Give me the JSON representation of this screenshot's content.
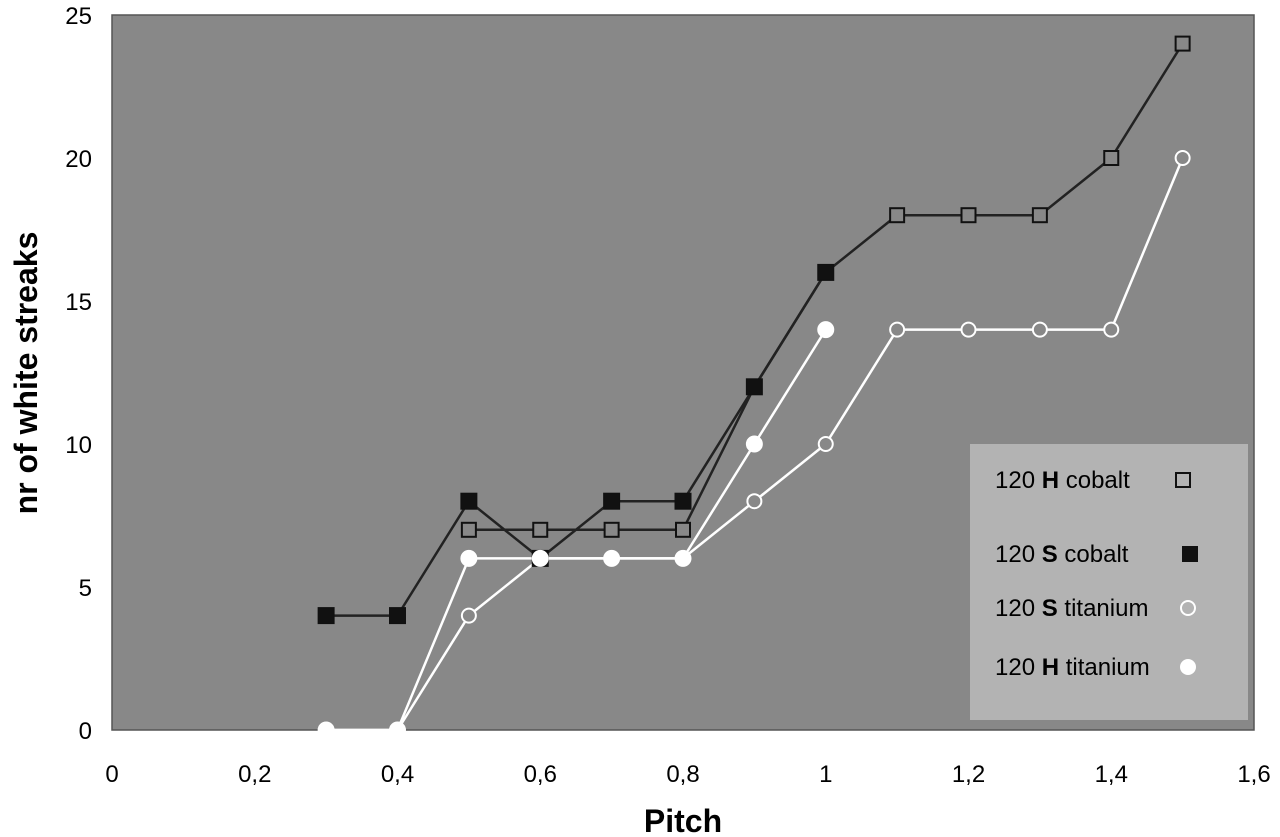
{
  "chart_data": {
    "type": "line",
    "title": "",
    "xlabel": "Pitch",
    "ylabel": "nr of white streaks",
    "xlim": [
      0,
      1.6
    ],
    "ylim": [
      0,
      25
    ],
    "x_ticks": [
      "0",
      "0,2",
      "0,4",
      "0,6",
      "0,8",
      "1",
      "1,2",
      "1,4",
      "1,6"
    ],
    "y_ticks": [
      "0",
      "5",
      "10",
      "15",
      "20",
      "25"
    ],
    "grid": false,
    "legend_position": "right",
    "plot_background": "#888888",
    "series": [
      {
        "name": "120 H cobalt",
        "legend": {
          "prefix": "120 ",
          "bold": "H",
          "suffix": " cobalt"
        },
        "line_color": "#222222",
        "marker": "square-open",
        "x": [
          0.5,
          0.6,
          0.7,
          0.8,
          0.9,
          1.0,
          1.1,
          1.2,
          1.3,
          1.4,
          1.5
        ],
        "y": [
          7,
          7,
          7,
          7,
          12,
          16,
          18,
          18,
          18,
          20,
          24
        ]
      },
      {
        "name": "120 S cobalt",
        "legend": {
          "prefix": "120 ",
          "bold": "S",
          "suffix": " cobalt"
        },
        "line_color": "#222222",
        "marker": "square-filled",
        "x": [
          0.3,
          0.4,
          0.5,
          0.6,
          0.7,
          0.8,
          0.9,
          1.0
        ],
        "y": [
          4,
          4,
          8,
          6,
          8,
          8,
          12,
          16
        ]
      },
      {
        "name": "120 S titanium",
        "legend": {
          "prefix": "120 ",
          "bold": "S",
          "suffix": " titanium"
        },
        "line_color": "#ffffff",
        "marker": "circle-open",
        "x": [
          0.3,
          0.4,
          0.5,
          0.6,
          0.7,
          0.8,
          0.9,
          1.0,
          1.1,
          1.2,
          1.3,
          1.4,
          1.5
        ],
        "y": [
          0,
          0,
          4,
          6,
          6,
          6,
          8,
          10,
          14,
          14,
          14,
          14,
          20
        ]
      },
      {
        "name": "120 H titanium",
        "legend": {
          "prefix": "120 ",
          "bold": "H",
          "suffix": " titanium"
        },
        "line_color": "#ffffff",
        "marker": "circle-filled",
        "x": [
          0.3,
          0.4,
          0.5,
          0.6,
          0.7,
          0.8,
          0.9,
          1.0
        ],
        "y": [
          0,
          0,
          6,
          6,
          6,
          6,
          10,
          14
        ]
      }
    ]
  }
}
